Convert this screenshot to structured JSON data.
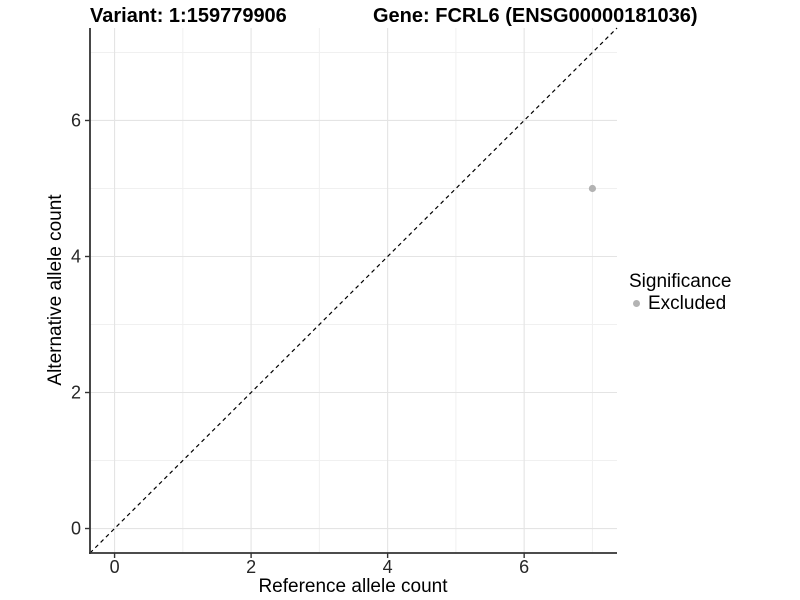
{
  "titles": {
    "variant": "Variant: 1:159779906",
    "gene": "Gene: FCRL6 (ENSG00000181036)"
  },
  "axes": {
    "x_label": "Reference allele count",
    "y_label": "Alternative allele count"
  },
  "legend": {
    "title": "Significance",
    "items": [
      {
        "label": "Excluded",
        "color": "#b3b3b3",
        "marker": "circle-icon"
      }
    ]
  },
  "colors": {
    "background": "#ffffff",
    "axis_line": "#333333",
    "tick_mark": "#333333",
    "tick_label": "#262626",
    "grid_major": "#e4e4e4",
    "grid_minor": "#f0f0f0",
    "reference_line": "#000000",
    "point": "#b3b3b3"
  },
  "chart_data": {
    "type": "scatter",
    "title": "Variant: 1:159779906   Gene: FCRL6 (ENSG00000181036)",
    "xlabel": "Reference allele count",
    "ylabel": "Alternative allele count",
    "xlim": [
      -0.36,
      7.36
    ],
    "ylim": [
      -0.36,
      7.36
    ],
    "x_ticks": [
      0,
      2,
      4,
      6
    ],
    "y_ticks": [
      0,
      2,
      4,
      6
    ],
    "x_minor_ticks": [
      1,
      3,
      5,
      7
    ],
    "y_minor_ticks": [
      1,
      3,
      5,
      7
    ],
    "grid": true,
    "legend_position": "right",
    "series": [
      {
        "name": "Excluded",
        "color": "#b3b3b3",
        "points": [
          {
            "x": 7,
            "y": 5
          }
        ]
      }
    ],
    "reference_line": {
      "slope": 1,
      "intercept": 0,
      "style": "dashed",
      "color": "#000000"
    }
  }
}
